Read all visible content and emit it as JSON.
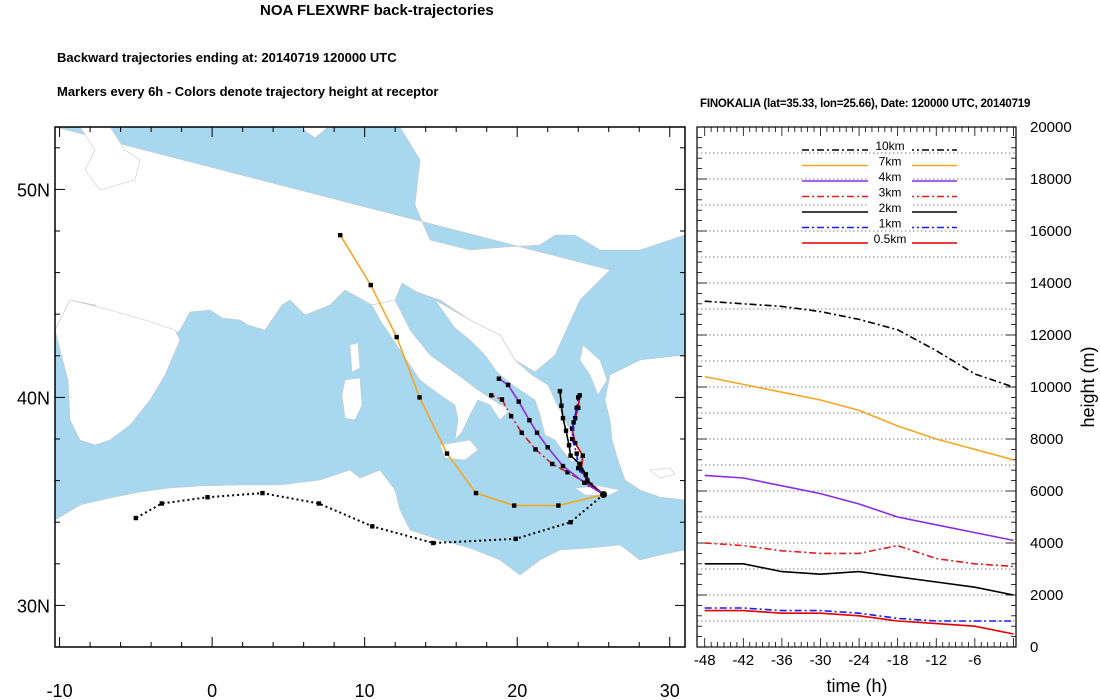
{
  "header": {
    "title": "NOA FLEXWRF back-trajectories",
    "subtitle": "Backward trajectories ending at: 20140719  120000 UTC",
    "subtitle2": "Markers every 6h - Colors denote trajectory height at receptor",
    "right_title": "FINOKALIA (lat=35.33,  lon=25.66), Date: 120000 UTC, 20140719"
  },
  "colors": {
    "sea": "#a8d8ef",
    "land": "#ffffff",
    "10km": "#000000",
    "7km": "#f5a623",
    "4km": "#8a2be2",
    "3km": "#e21b1b",
    "2km": "#000000",
    "1km": "#1a1aff",
    "0.5km": "#e00000"
  },
  "chart_data": [
    {
      "type": "map",
      "description": "Backward trajectories map",
      "xlim": [
        -10.3,
        31
      ],
      "ylim": [
        28,
        53
      ],
      "x_ticks": [
        "-10",
        "0",
        "10",
        "20",
        "30"
      ],
      "x_tick_values": [
        -10,
        0,
        10,
        20,
        30
      ],
      "y_ticks": [
        "30N",
        "40N",
        "50N"
      ],
      "y_tick_values": [
        30,
        40,
        50
      ],
      "receptor": {
        "lon": 25.66,
        "lat": 35.33
      },
      "series": [
        {
          "key": "0.5km",
          "points": [
            [
              25.66,
              35.33
            ],
            [
              24.6,
              36.0
            ],
            [
              24.2,
              36.5
            ],
            [
              24.3,
              37.2
            ],
            [
              23.8,
              37.8
            ],
            [
              23.6,
              38.5
            ],
            [
              23.8,
              39.0
            ],
            [
              24.0,
              39.5
            ],
            [
              24.1,
              40.1
            ]
          ]
        },
        {
          "key": "1km",
          "points": [
            [
              25.66,
              35.33
            ],
            [
              24.6,
              36.0
            ],
            [
              24.0,
              36.6
            ],
            [
              23.9,
              37.3
            ],
            [
              23.6,
              38.0
            ],
            [
              23.7,
              38.8
            ],
            [
              23.9,
              39.5
            ],
            [
              24.0,
              40.0
            ]
          ]
        },
        {
          "key": "2km",
          "points": [
            [
              25.66,
              35.33
            ],
            [
              24.8,
              35.8
            ],
            [
              24.5,
              36.3
            ],
            [
              24.1,
              36.8
            ],
            [
              23.5,
              37.2
            ],
            [
              23.4,
              37.7
            ],
            [
              23.2,
              38.4
            ],
            [
              23.0,
              39.0
            ],
            [
              22.9,
              39.6
            ],
            [
              22.8,
              40.3
            ]
          ]
        },
        {
          "key": "3km",
          "points": [
            [
              25.66,
              35.33
            ],
            [
              24.5,
              35.9
            ],
            [
              23.3,
              36.4
            ],
            [
              22.3,
              36.8
            ],
            [
              21.2,
              37.5
            ],
            [
              20.3,
              38.3
            ],
            [
              19.6,
              39.1
            ],
            [
              19.0,
              39.9
            ],
            [
              18.3,
              40.1
            ]
          ]
        },
        {
          "key": "4km",
          "points": [
            [
              25.66,
              35.33
            ],
            [
              24.4,
              35.9
            ],
            [
              23.0,
              36.7
            ],
            [
              22.0,
              37.6
            ],
            [
              21.3,
              38.3
            ],
            [
              20.8,
              38.9
            ],
            [
              20.1,
              39.8
            ],
            [
              19.4,
              40.6
            ],
            [
              18.8,
              40.9
            ]
          ]
        },
        {
          "key": "7km",
          "points": [
            [
              25.66,
              35.33
            ],
            [
              22.7,
              34.8
            ],
            [
              19.8,
              34.8
            ],
            [
              17.3,
              35.4
            ],
            [
              15.4,
              37.3
            ],
            [
              13.6,
              40.0
            ],
            [
              12.1,
              42.9
            ],
            [
              10.4,
              45.4
            ],
            [
              8.4,
              47.8
            ]
          ]
        },
        {
          "key": "10km",
          "points": [
            [
              25.66,
              35.33
            ],
            [
              23.5,
              34.0
            ],
            [
              19.9,
              33.2
            ],
            [
              14.5,
              33.0
            ],
            [
              10.5,
              33.8
            ],
            [
              7.0,
              34.9
            ],
            [
              3.3,
              35.4
            ],
            [
              -0.3,
              35.2
            ],
            [
              -3.3,
              34.9
            ],
            [
              -5.0,
              34.2
            ]
          ]
        }
      ]
    },
    {
      "type": "line",
      "description": "Trajectory height vs time",
      "xlabel": "time (h)",
      "ylabel": "height (m)",
      "xlim": [
        -49.2,
        0.4
      ],
      "ylim": [
        0,
        20000
      ],
      "x_ticks": [
        "-48",
        "-42",
        "-36",
        "-30",
        "-24",
        "-18",
        "-12",
        "-6"
      ],
      "x_tick_values": [
        -48,
        -42,
        -36,
        -30,
        -24,
        -18,
        -12,
        -6
      ],
      "y_ticks": [
        "0",
        "2000",
        "4000",
        "6000",
        "8000",
        "10000",
        "12000",
        "14000",
        "16000",
        "18000",
        "20000"
      ],
      "y_tick_values": [
        0,
        2000,
        4000,
        6000,
        8000,
        10000,
        12000,
        14000,
        16000,
        18000,
        20000
      ],
      "legend_position": "top-center",
      "x": [
        -48,
        -42,
        -36,
        -30,
        -24,
        -18,
        -12,
        -6,
        0
      ],
      "series": [
        {
          "name": "10km",
          "style": "dashdot",
          "values": [
            13300,
            13200,
            13100,
            12900,
            12600,
            12200,
            11400,
            10500,
            10000
          ]
        },
        {
          "name": "7km",
          "style": "solid",
          "values": [
            10400,
            10100,
            9800,
            9500,
            9100,
            8500,
            8000,
            7600,
            7200
          ]
        },
        {
          "name": "4km",
          "style": "solid",
          "values": [
            6600,
            6500,
            6200,
            5900,
            5500,
            5000,
            4700,
            4400,
            4100
          ]
        },
        {
          "name": "3km",
          "style": "dashdot",
          "values": [
            4000,
            3900,
            3700,
            3600,
            3600,
            3900,
            3400,
            3200,
            3100
          ]
        },
        {
          "name": "2km",
          "style": "solid",
          "values": [
            3200,
            3200,
            2900,
            2800,
            2900,
            2700,
            2500,
            2300,
            2000
          ]
        },
        {
          "name": "1km",
          "style": "dashdot",
          "values": [
            1500,
            1500,
            1400,
            1400,
            1300,
            1100,
            1000,
            1000,
            1000
          ]
        },
        {
          "name": "0.5km",
          "style": "solid",
          "values": [
            1400,
            1400,
            1300,
            1300,
            1200,
            1000,
            900,
            800,
            500
          ]
        }
      ]
    }
  ]
}
